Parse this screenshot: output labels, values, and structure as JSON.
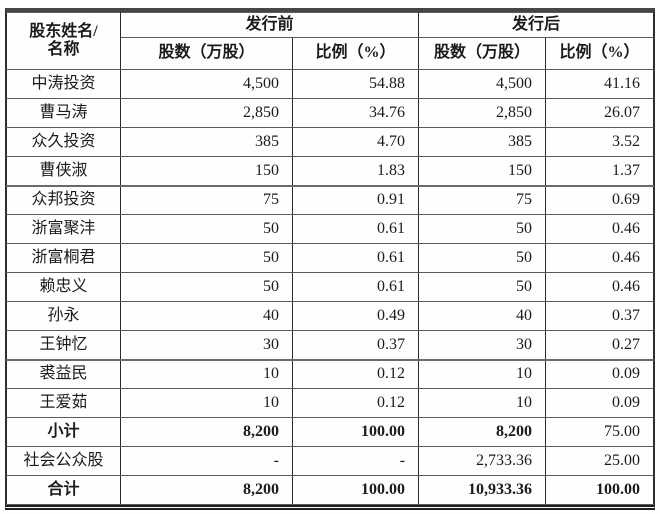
{
  "table": {
    "header": {
      "shareholder_line1": "股东姓名/",
      "shareholder_line2": "名称",
      "before_group": "发行前",
      "after_group": "发行后",
      "shares_label_before": "股数（万股）",
      "ratio_label_before": "比例（%）",
      "shares_label_after": "股数（万股）",
      "ratio_label_after": "比例（%）"
    },
    "rows": [
      {
        "name": "中涛投资",
        "pre_shares": "4,500",
        "pre_ratio": "54.88",
        "post_shares": "4,500",
        "post_ratio": "41.16"
      },
      {
        "name": "曹马涛",
        "pre_shares": "2,850",
        "pre_ratio": "34.76",
        "post_shares": "2,850",
        "post_ratio": "26.07"
      },
      {
        "name": "众久投资",
        "pre_shares": "385",
        "pre_ratio": "4.70",
        "post_shares": "385",
        "post_ratio": "3.52"
      },
      {
        "name": "曹侠淑",
        "pre_shares": "150",
        "pre_ratio": "1.83",
        "post_shares": "150",
        "post_ratio": "1.37"
      },
      {
        "name": "众邦投资",
        "pre_shares": "75",
        "pre_ratio": "0.91",
        "post_shares": "75",
        "post_ratio": "0.69"
      },
      {
        "name": "浙富聚沣",
        "pre_shares": "50",
        "pre_ratio": "0.61",
        "post_shares": "50",
        "post_ratio": "0.46"
      },
      {
        "name": "浙富桐君",
        "pre_shares": "50",
        "pre_ratio": "0.61",
        "post_shares": "50",
        "post_ratio": "0.46"
      },
      {
        "name": "赖忠义",
        "pre_shares": "50",
        "pre_ratio": "0.61",
        "post_shares": "50",
        "post_ratio": "0.46"
      },
      {
        "name": "孙永",
        "pre_shares": "40",
        "pre_ratio": "0.49",
        "post_shares": "40",
        "post_ratio": "0.37"
      },
      {
        "name": "王钟忆",
        "pre_shares": "30",
        "pre_ratio": "0.37",
        "post_shares": "30",
        "post_ratio": "0.27"
      },
      {
        "name": "裘益民",
        "pre_shares": "10",
        "pre_ratio": "0.12",
        "post_shares": "10",
        "post_ratio": "0.09"
      },
      {
        "name": "王爱茹",
        "pre_shares": "10",
        "pre_ratio": "0.12",
        "post_shares": "10",
        "post_ratio": "0.09"
      },
      {
        "name": "小计",
        "pre_shares": "8,200",
        "pre_ratio": "100.00",
        "post_shares": "8,200",
        "post_ratio": "75.00"
      },
      {
        "name": "社会公众股",
        "pre_shares": "-",
        "pre_ratio": "-",
        "post_shares": "2,733.36",
        "post_ratio": "25.00"
      },
      {
        "name": "合计",
        "pre_shares": "8,200",
        "pre_ratio": "100.00",
        "post_shares": "10,933.36",
        "post_ratio": "100.00"
      }
    ]
  }
}
